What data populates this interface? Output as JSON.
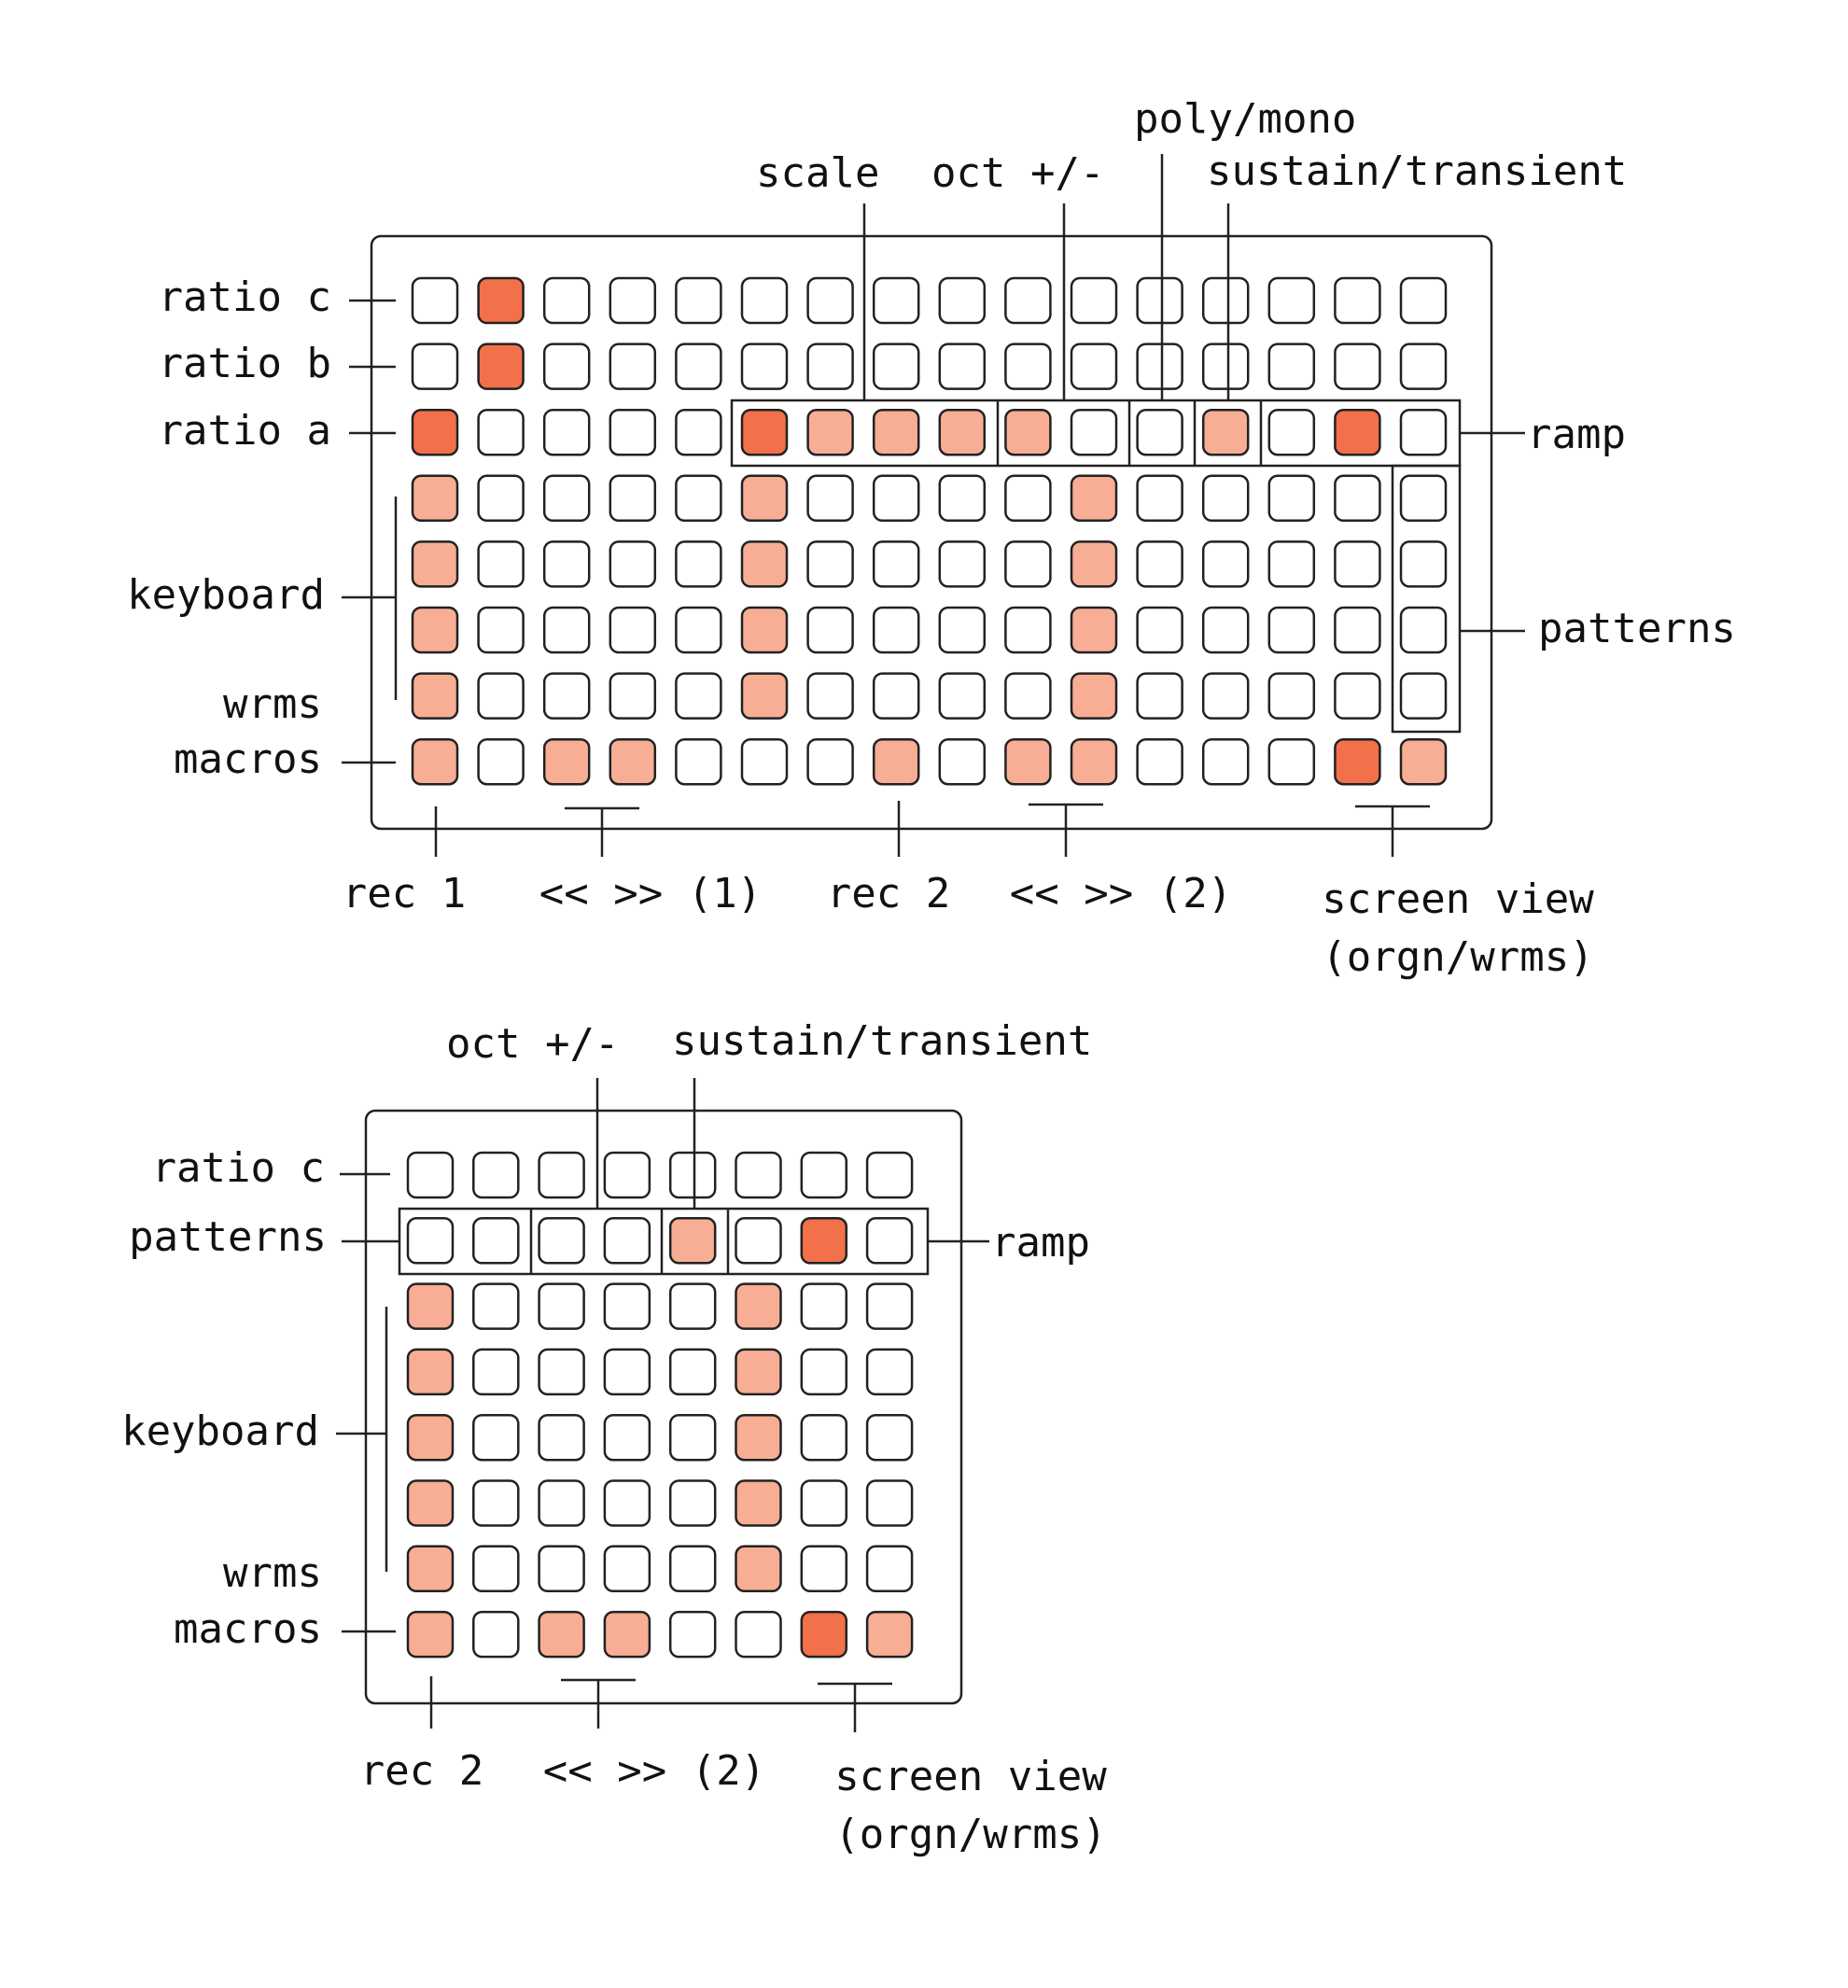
{
  "colors": {
    "strong": "#f2704a",
    "light": "#f7ae94",
    "off": "#ffffff",
    "stroke": "#222222"
  },
  "top_grid": {
    "rows": [
      "0200000000000000",
      "0200000000000000",
      "2000021111001020",
      "1000010000100000",
      "1000010000100000",
      "1000010000100000",
      "1000010000100000",
      "1011000101100021"
    ],
    "labels": {
      "scale": "scale",
      "oct": "oct +/-",
      "poly_mono": "poly/mono",
      "sustain_transient": "sustain/transient",
      "ratio_c": "ratio c",
      "ratio_b": "ratio b",
      "ratio_a": "ratio a",
      "keyboard": "keyboard",
      "wrms": "wrms",
      "macros": "macros",
      "ramp": "ramp",
      "patterns": "patterns",
      "rec1": "rec 1",
      "nav1": "<< >> (1)",
      "rec2": "rec 2",
      "nav2": "<< >> (2)",
      "screen_view": "screen view",
      "screen_view_sub": "(orgn/wrms)"
    }
  },
  "bottom_grid": {
    "rows": [
      "00000000",
      "00001020",
      "10000100",
      "10000100",
      "10000100",
      "10000100",
      "10000100",
      "10110021"
    ],
    "labels": {
      "oct": "oct +/-",
      "sustain_transient": "sustain/transient",
      "ratio_c": "ratio c",
      "patterns": "patterns",
      "ramp": "ramp",
      "keyboard": "keyboard",
      "wrms": "wrms",
      "macros": "macros",
      "rec2": "rec 2",
      "nav2": "<< >> (2)",
      "screen_view": "screen view",
      "screen_view_sub": "(orgn/wrms)"
    }
  }
}
